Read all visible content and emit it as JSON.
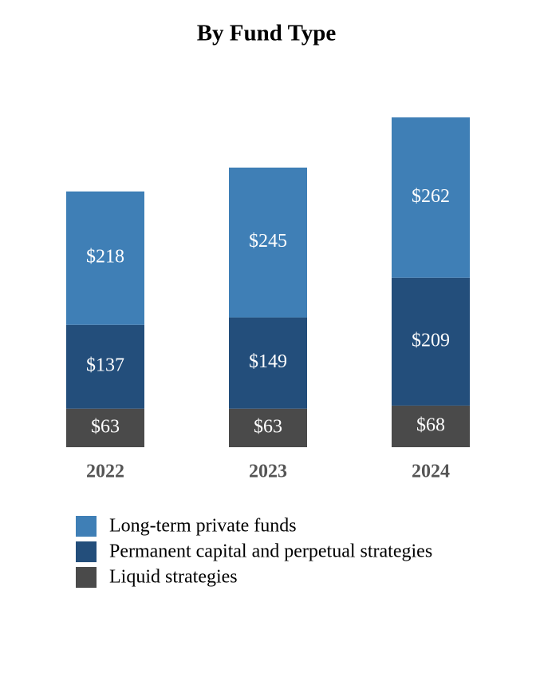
{
  "chart_data": {
    "type": "stacked-bar",
    "title": "By Fund Type",
    "categories": [
      "2022",
      "2023",
      "2024"
    ],
    "series": [
      {
        "name": "Long-term private funds",
        "color": "#3f7fb6",
        "values": [
          218,
          245,
          262
        ],
        "value_labels": [
          "$218",
          "$245",
          "$262"
        ]
      },
      {
        "name": "Permanent capital and perpetual strategies",
        "color": "#234e7b",
        "values": [
          137,
          149,
          209
        ],
        "value_labels": [
          "$137",
          "$149",
          "$209"
        ]
      },
      {
        "name": "Liquid strategies",
        "color": "#4a4a4a",
        "values": [
          63,
          63,
          68
        ],
        "value_labels": [
          "$63",
          "$63",
          "$68"
        ]
      }
    ]
  }
}
